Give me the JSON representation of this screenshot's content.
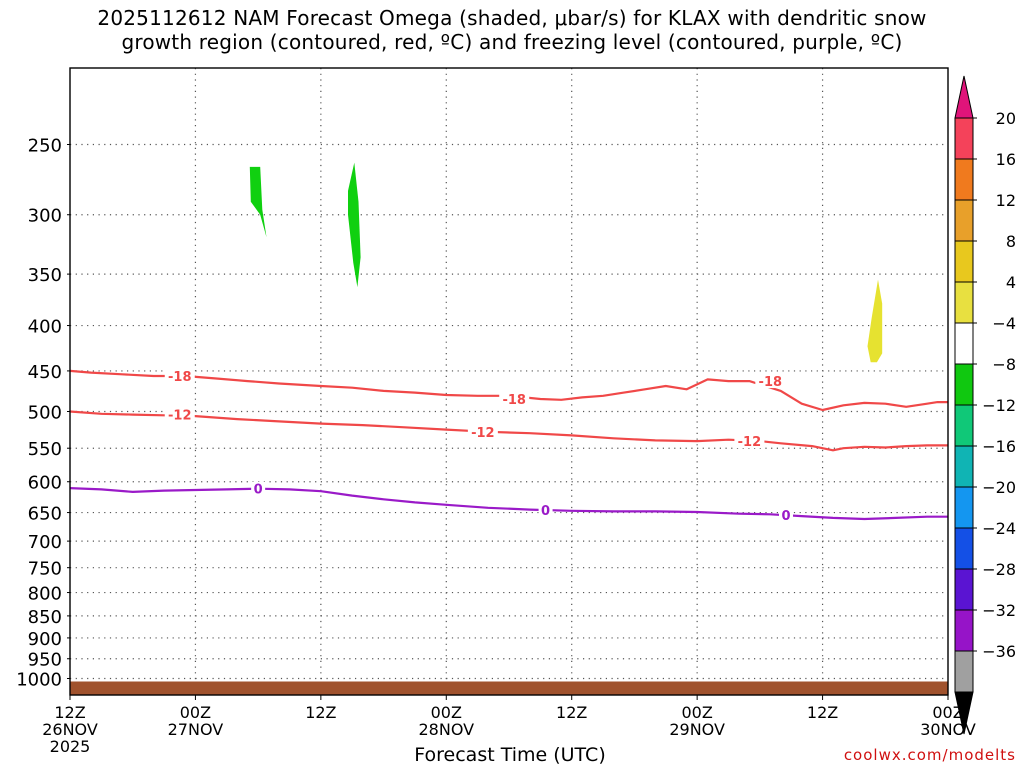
{
  "title": {
    "line1": "2025112612 NAM Forecast Omega (shaded, μbar/s) for KLAX with dendritic snow",
    "line2": "growth region (contoured, red, ºC) and freezing level (contoured, purple, ºC)"
  },
  "credit": "coolwx.com/modelts",
  "chart_data": {
    "type": "time-height cross section",
    "xlabel": "Forecast Time (UTC)",
    "x_ticks": [
      {
        "hour": 0,
        "label": [
          "12Z",
          "26NOV",
          "2025"
        ]
      },
      {
        "hour": 12,
        "label": [
          "00Z",
          "27NOV"
        ]
      },
      {
        "hour": 24,
        "label": [
          "12Z"
        ]
      },
      {
        "hour": 36,
        "label": [
          "00Z",
          "28NOV"
        ]
      },
      {
        "hour": 48,
        "label": [
          "12Z"
        ]
      },
      {
        "hour": 60,
        "label": [
          "00Z",
          "29NOV"
        ]
      },
      {
        "hour": 72,
        "label": [
          "12Z"
        ]
      },
      {
        "hour": 84,
        "label": [
          "00Z",
          "30NOV"
        ]
      }
    ],
    "x_range_hours": [
      0,
      84
    ],
    "y_axis": "pressure (mb)",
    "y_ticks": [
      250,
      300,
      350,
      400,
      450,
      500,
      550,
      600,
      650,
      700,
      750,
      800,
      850,
      900,
      950,
      1000
    ],
    "y_range": [
      1050,
      200
    ],
    "grid": true,
    "colorbar": {
      "labels": [
        "20",
        "16",
        "12",
        "8",
        "4",
        "−4",
        "−8",
        "−12",
        "−16",
        "−20",
        "−24",
        "−28",
        "−32",
        "−36"
      ],
      "colors": [
        "#f4425a",
        "#f07a1e",
        "#e8a02a",
        "#e8c81e",
        "#e8e040",
        "#ffffff",
        "#10c810",
        "#10c878",
        "#10b4b4",
        "#1496f0",
        "#1450e6",
        "#5a14d2",
        "#9614c8",
        "#a0a0a0"
      ],
      "top_arrow_color": "#e0147a",
      "bottom_arrow_color": "#000000"
    },
    "contours": [
      {
        "label": "-18",
        "color": "#f04848",
        "points": [
          [
            0,
            450
          ],
          [
            2,
            452
          ],
          [
            5,
            454
          ],
          [
            8,
            456
          ],
          [
            11,
            456
          ],
          [
            14,
            459
          ],
          [
            17,
            462
          ],
          [
            20,
            465
          ],
          [
            24,
            468
          ],
          [
            27,
            470
          ],
          [
            30,
            474
          ],
          [
            33,
            476
          ],
          [
            36,
            479
          ],
          [
            39,
            480
          ],
          [
            42,
            480
          ],
          [
            45,
            484
          ],
          [
            47,
            485
          ],
          [
            49,
            482
          ],
          [
            51,
            480
          ],
          [
            53,
            476
          ],
          [
            55,
            472
          ],
          [
            57,
            468
          ],
          [
            59,
            472
          ],
          [
            61,
            460
          ],
          [
            63,
            462
          ],
          [
            65,
            462
          ],
          [
            68,
            474
          ],
          [
            70,
            490
          ],
          [
            72,
            498
          ],
          [
            74,
            492
          ],
          [
            76,
            489
          ],
          [
            78,
            490
          ],
          [
            80,
            494
          ],
          [
            82,
            490
          ],
          [
            83,
            488
          ],
          [
            84,
            488
          ]
        ],
        "label_at": [
          [
            10.5,
            456
          ],
          [
            42.5,
            484
          ],
          [
            67,
            462
          ]
        ]
      },
      {
        "label": "-12",
        "color": "#f04848",
        "points": [
          [
            0,
            500
          ],
          [
            3,
            503
          ],
          [
            6,
            504
          ],
          [
            9,
            505
          ],
          [
            12,
            506
          ],
          [
            16,
            510
          ],
          [
            20,
            513
          ],
          [
            24,
            516
          ],
          [
            28,
            518
          ],
          [
            32,
            521
          ],
          [
            36,
            524
          ],
          [
            40,
            527
          ],
          [
            44,
            529
          ],
          [
            48,
            532
          ],
          [
            52,
            536
          ],
          [
            56,
            539
          ],
          [
            60,
            540
          ],
          [
            63,
            538
          ],
          [
            66,
            540
          ],
          [
            68,
            543
          ],
          [
            71,
            547
          ],
          [
            73,
            553
          ],
          [
            74,
            550
          ],
          [
            76,
            548
          ],
          [
            78,
            549
          ],
          [
            80,
            547
          ],
          [
            82,
            546
          ],
          [
            84,
            546
          ]
        ],
        "label_at": [
          [
            10.5,
            504
          ],
          [
            39.5,
            527
          ],
          [
            65,
            540
          ]
        ]
      },
      {
        "label": "0",
        "color": "#9a1ac8",
        "points": [
          [
            0,
            610
          ],
          [
            3,
            612
          ],
          [
            6,
            616
          ],
          [
            9,
            614
          ],
          [
            12,
            613
          ],
          [
            15,
            612
          ],
          [
            18,
            611
          ],
          [
            21,
            612
          ],
          [
            24,
            615
          ],
          [
            27,
            622
          ],
          [
            30,
            628
          ],
          [
            33,
            633
          ],
          [
            36,
            637
          ],
          [
            40,
            642
          ],
          [
            44,
            645
          ],
          [
            48,
            647
          ],
          [
            52,
            648
          ],
          [
            56,
            648
          ],
          [
            60,
            649
          ],
          [
            64,
            652
          ],
          [
            67,
            653
          ],
          [
            70,
            656
          ],
          [
            73,
            659
          ],
          [
            76,
            661
          ],
          [
            79,
            659
          ],
          [
            82,
            657
          ],
          [
            84,
            657
          ]
        ],
        "label_at": [
          [
            18,
            611
          ],
          [
            45.5,
            646
          ],
          [
            68.5,
            654
          ]
        ]
      }
    ],
    "shaded": [
      {
        "value_range": "-8 to -4",
        "color": "#10d010",
        "points": [
          [
            17.2,
            265
          ],
          [
            18.2,
            265
          ],
          [
            18.4,
            296
          ],
          [
            18.8,
            318
          ],
          [
            18.2,
            300
          ],
          [
            17.3,
            290
          ]
        ]
      },
      {
        "value_range": "-8 to -4",
        "color": "#10d010",
        "points": [
          [
            26.6,
            282
          ],
          [
            27.2,
            262
          ],
          [
            27.6,
            290
          ],
          [
            27.8,
            335
          ],
          [
            27.5,
            362
          ],
          [
            27.1,
            340
          ],
          [
            26.6,
            300
          ]
        ]
      },
      {
        "value_range": "4 to 8",
        "color": "#e6e230",
        "points": [
          [
            76.3,
            422
          ],
          [
            76.7,
            392
          ],
          [
            77.3,
            355
          ],
          [
            77.7,
            378
          ],
          [
            77.7,
            430
          ],
          [
            77.2,
            440
          ],
          [
            76.6,
            440
          ]
        ]
      }
    ],
    "ground": {
      "color": "#a0522d"
    }
  }
}
